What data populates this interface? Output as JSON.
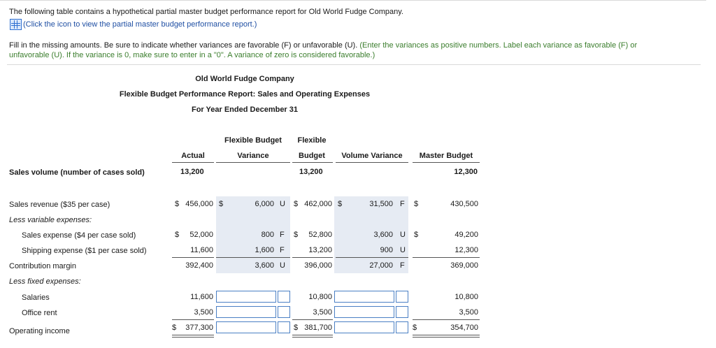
{
  "intro": {
    "line1": "The following table contains a hypothetical partial master budget performance report for Old World Fudge Company.",
    "link": "(Click the icon to view the partial master budget performance report.)",
    "instr_black": "Fill in the missing amounts. Be sure to indicate whether variances are favorable (F) or unfavorable (U).",
    "instr_green1": "(Enter the variances as positive numbers. Label each variance as favorable (F) or",
    "instr_green2": "unfavorable (U). If the variance is 0, make sure to enter in a \"0\". A variance of zero is considered favorable.)"
  },
  "report": {
    "company": "Old World Fudge Company",
    "title": "Flexible Budget Performance Report: Sales and Operating Expenses",
    "period": "For Year Ended December 31"
  },
  "headers": {
    "actual": "Actual",
    "fbv1": "Flexible Budget",
    "fbv2": "Variance",
    "fb1": "Flexible",
    "fb2": "Budget",
    "vv": "Volume Variance",
    "mb": "Master Budget"
  },
  "volume": {
    "label": "Sales volume (number of cases sold)",
    "actual": "13,200",
    "flex": "13,200",
    "master": "12,300"
  },
  "rows": {
    "sales": {
      "label": "Sales revenue ($35 per case)",
      "d1": "$",
      "actual": "456,000",
      "d2": "$",
      "fbv": "6,000",
      "fbv_fu": "U",
      "d3": "$",
      "flex": "462,000",
      "d4": "$",
      "vv": "31,500",
      "vv_fu": "F",
      "d5": "$",
      "master": "430,500"
    },
    "less_var": {
      "label": "Less variable expenses:"
    },
    "sales_exp": {
      "label": "Sales expense ($4 per case sold)",
      "d1": "$",
      "actual": "52,000",
      "fbv": "800",
      "fbv_fu": "F",
      "d3": "$",
      "flex": "52,800",
      "vv": "3,600",
      "vv_fu": "U",
      "d5": "$",
      "master": "49,200"
    },
    "ship_exp": {
      "label": "Shipping expense ($1 per case sold)",
      "actual": "11,600",
      "fbv": "1,600",
      "fbv_fu": "F",
      "flex": "13,200",
      "vv": "900",
      "vv_fu": "U",
      "master": "12,300"
    },
    "contrib": {
      "label": "Contribution margin",
      "actual": "392,400",
      "fbv": "3,600",
      "fbv_fu": "U",
      "flex": "396,000",
      "vv": "27,000",
      "vv_fu": "F",
      "master": "369,000"
    },
    "less_fixed": {
      "label": "Less fixed expenses:"
    },
    "salaries": {
      "label": "Salaries",
      "actual": "11,600",
      "flex": "10,800",
      "master": "10,800"
    },
    "rent": {
      "label": "Office rent",
      "actual": "3,500",
      "flex": "3,500",
      "master": "3,500"
    },
    "opinc": {
      "label": "Operating income",
      "d1": "$",
      "actual": "377,300",
      "d3": "$",
      "flex": "381,700",
      "d5": "$",
      "master": "354,700"
    }
  },
  "colors": {
    "shade": "#e6ebf3",
    "input_border": "#4a7fc4",
    "green_text": "#3a7d2c",
    "link_blue": "#1f4fa3"
  }
}
